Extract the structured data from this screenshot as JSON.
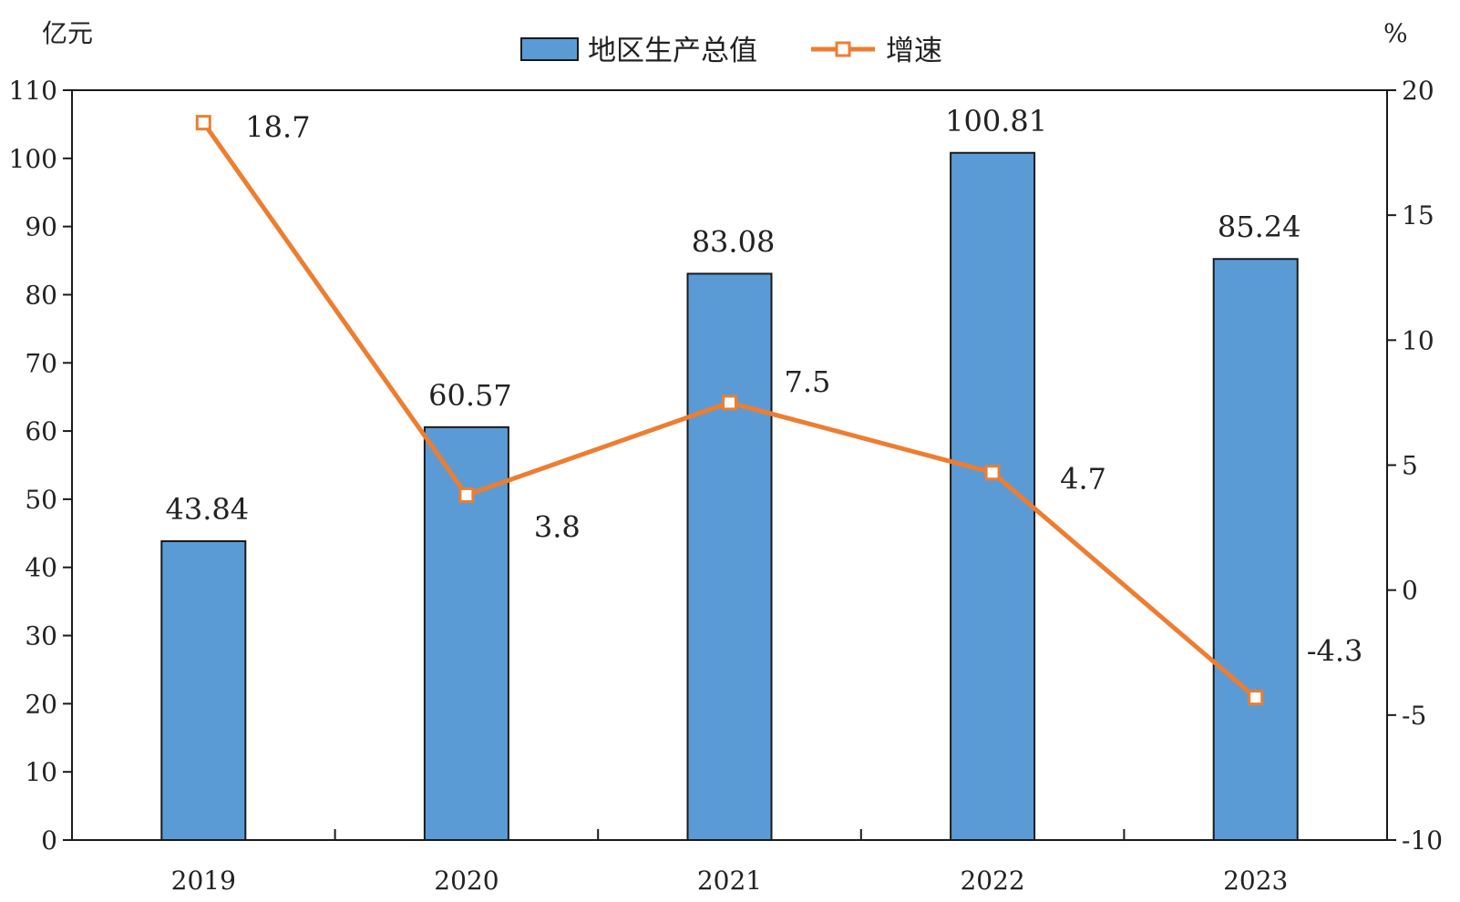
{
  "chart_data": {
    "type": "bar",
    "categories": [
      "2019",
      "2020",
      "2021",
      "2022",
      "2023"
    ],
    "series": [
      {
        "name": "地区生产总值",
        "type": "bar",
        "axis": "left",
        "values": [
          43.84,
          60.57,
          83.08,
          100.81,
          85.24
        ],
        "labels": [
          "43.84",
          "60.57",
          "83.08",
          "100.81",
          "85.24"
        ]
      },
      {
        "name": "增速",
        "type": "line",
        "axis": "right",
        "values": [
          18.7,
          3.8,
          7.5,
          4.7,
          -4.3
        ],
        "labels": [
          "18.7",
          "3.8",
          "7.5",
          "4.7",
          "-4.3"
        ]
      }
    ],
    "ylabel_left": "亿元",
    "ylabel_right": "%",
    "ylim_left": [
      0,
      110
    ],
    "ylim_right": [
      -10,
      20
    ],
    "yticks_left": [
      "0",
      "10",
      "20",
      "30",
      "40",
      "50",
      "60",
      "70",
      "80",
      "90",
      "100",
      "110"
    ],
    "yticks_right": [
      "-10",
      "-5",
      "0",
      "5",
      "10",
      "15",
      "20"
    ],
    "grid": false,
    "legend_position": "top-center",
    "colors": {
      "bar_fill": "#5b9bd5",
      "bar_stroke": "#1a1a1a",
      "line": "#ed7d31",
      "marker_fill": "#ffffff",
      "axis": "#1a1a1a"
    }
  }
}
